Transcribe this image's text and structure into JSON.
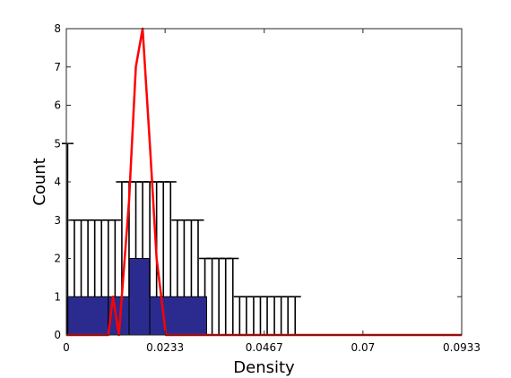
{
  "chart_data": {
    "type": "bar",
    "title": "",
    "xlabel": "Density",
    "ylabel": "Count",
    "xlim": [
      0,
      0.0933
    ],
    "ylim": [
      0,
      8
    ],
    "x_ticks": [
      0,
      0.0233,
      0.0467,
      0.07,
      0.0933
    ],
    "x_tick_labels": [
      "0",
      "0.0233",
      "0.0467",
      "0.07",
      "0.0933"
    ],
    "y_ticks": [
      0,
      1,
      2,
      3,
      4,
      5,
      6,
      7,
      8
    ],
    "y_tick_labels": [
      "0",
      "1",
      "2",
      "3",
      "4",
      "5",
      "6",
      "7",
      "8"
    ],
    "grid": false,
    "histogram": {
      "bins": [
        {
          "x0": 0.0,
          "x1": 0.0099,
          "count": 1
        },
        {
          "x0": 0.0099,
          "x1": 0.0148,
          "count": 1
        },
        {
          "x0": 0.0148,
          "x1": 0.0197,
          "count": 2
        },
        {
          "x0": 0.0197,
          "x1": 0.0331,
          "count": 1
        }
      ],
      "fill_color": "#2b2b8f",
      "edge_color": "#000000"
    },
    "error_bars": [
      {
        "x": 0.0003,
        "value": 0,
        "upper": 5
      },
      {
        "x": 0.0019,
        "value": 1,
        "upper": 3
      },
      {
        "x": 0.0035,
        "value": 1,
        "upper": 3
      },
      {
        "x": 0.0051,
        "value": 1,
        "upper": 3
      },
      {
        "x": 0.0067,
        "value": 1,
        "upper": 3
      },
      {
        "x": 0.0083,
        "value": 1,
        "upper": 3
      },
      {
        "x": 0.0099,
        "value": 1,
        "upper": 3
      },
      {
        "x": 0.0115,
        "value": 1,
        "upper": 3
      },
      {
        "x": 0.0131,
        "value": 1,
        "upper": 4
      },
      {
        "x": 0.0148,
        "value": 1,
        "upper": 4
      },
      {
        "x": 0.0164,
        "value": 2,
        "upper": 4
      },
      {
        "x": 0.018,
        "value": 2,
        "upper": 4
      },
      {
        "x": 0.0197,
        "value": 1,
        "upper": 4
      },
      {
        "x": 0.0213,
        "value": 1,
        "upper": 4
      },
      {
        "x": 0.0229,
        "value": 1,
        "upper": 4
      },
      {
        "x": 0.0246,
        "value": 1,
        "upper": 4
      },
      {
        "x": 0.0262,
        "value": 1,
        "upper": 3
      },
      {
        "x": 0.0278,
        "value": 1,
        "upper": 3
      },
      {
        "x": 0.0295,
        "value": 1,
        "upper": 3
      },
      {
        "x": 0.0311,
        "value": 1,
        "upper": 3
      },
      {
        "x": 0.0327,
        "value": 1,
        "upper": 2
      },
      {
        "x": 0.0344,
        "value": 0,
        "upper": 2
      },
      {
        "x": 0.036,
        "value": 0,
        "upper": 2
      },
      {
        "x": 0.0376,
        "value": 0,
        "upper": 2
      },
      {
        "x": 0.0393,
        "value": 0,
        "upper": 2
      },
      {
        "x": 0.0409,
        "value": 0,
        "upper": 1
      },
      {
        "x": 0.0425,
        "value": 0,
        "upper": 1
      },
      {
        "x": 0.0442,
        "value": 0,
        "upper": 1
      },
      {
        "x": 0.0458,
        "value": 0,
        "upper": 1
      },
      {
        "x": 0.0474,
        "value": 0,
        "upper": 1
      },
      {
        "x": 0.0491,
        "value": 0,
        "upper": 1
      },
      {
        "x": 0.0507,
        "value": 0,
        "upper": 1
      },
      {
        "x": 0.0523,
        "value": 0,
        "upper": 1
      },
      {
        "x": 0.054,
        "value": 0,
        "upper": 1
      }
    ],
    "error_bar_color": "#000000",
    "series": [
      {
        "x": [
          0,
          0.0099,
          0.011,
          0.0124,
          0.0148,
          0.0164,
          0.018,
          0.0197,
          0.0213,
          0.0235,
          0.0933
        ],
        "values": [
          0,
          0,
          1,
          0,
          3.5,
          7,
          8,
          5,
          2,
          0,
          0
        ],
        "color": "#ff0000"
      }
    ]
  }
}
